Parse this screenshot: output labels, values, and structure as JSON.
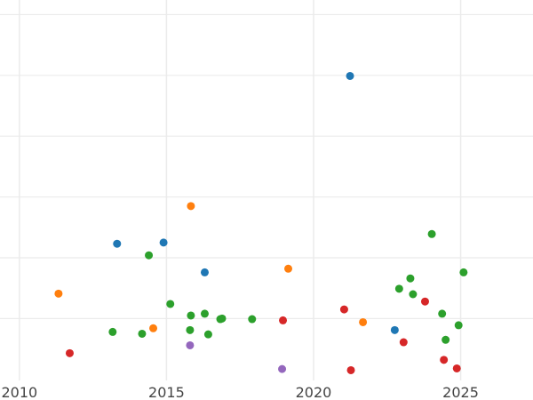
{
  "chart_data": {
    "type": "scatter",
    "title": "",
    "xlabel": "",
    "ylabel": "",
    "xlim": [
      2009.34,
      2027.46
    ],
    "ylim": [
      -0.34,
      6.24
    ],
    "xticks": [
      2010,
      2015,
      2020,
      2025
    ],
    "xtick_labels": [
      "2010",
      "2015",
      "2020",
      "2025"
    ],
    "yticks": [
      1,
      2,
      3,
      4,
      5,
      6
    ],
    "ytick_labels_shown": false,
    "grid": true,
    "series": [
      {
        "color": "#1f77b4",
        "points": [
          [
            2021.24,
            4.99
          ],
          [
            2013.32,
            2.23
          ],
          [
            2014.9,
            2.25
          ],
          [
            2016.3,
            1.76
          ],
          [
            2022.76,
            0.81
          ]
        ]
      },
      {
        "color": "#ff7f0e",
        "points": [
          [
            2015.83,
            2.85
          ],
          [
            2019.14,
            1.82
          ],
          [
            2011.33,
            1.41
          ],
          [
            2014.55,
            0.84
          ],
          [
            2021.68,
            0.94
          ]
        ]
      },
      {
        "color": "#2ca02c",
        "points": [
          [
            2024.02,
            2.39
          ],
          [
            2014.4,
            2.04
          ],
          [
            2023.29,
            1.66
          ],
          [
            2025.1,
            1.76
          ],
          [
            2022.91,
            1.49
          ],
          [
            2023.38,
            1.4
          ],
          [
            2015.13,
            1.24
          ],
          [
            2024.37,
            1.08
          ],
          [
            2015.83,
            1.05
          ],
          [
            2016.3,
            1.08
          ],
          [
            2016.83,
            0.99
          ],
          [
            2016.89,
            1.0
          ],
          [
            2017.91,
            0.99
          ],
          [
            2024.93,
            0.89
          ],
          [
            2013.17,
            0.78
          ],
          [
            2014.17,
            0.75
          ],
          [
            2015.8,
            0.81
          ],
          [
            2016.42,
            0.74
          ],
          [
            2024.49,
            0.65
          ]
        ]
      },
      {
        "color": "#d62728",
        "points": [
          [
            2021.04,
            1.15
          ],
          [
            2023.79,
            1.28
          ],
          [
            2018.96,
            0.97
          ],
          [
            2023.06,
            0.61
          ],
          [
            2011.71,
            0.43
          ],
          [
            2024.43,
            0.32
          ],
          [
            2024.87,
            0.18
          ],
          [
            2021.27,
            0.15
          ]
        ]
      },
      {
        "color": "#9467bd",
        "points": [
          [
            2015.8,
            0.56
          ],
          [
            2018.93,
            0.17
          ]
        ]
      }
    ]
  }
}
